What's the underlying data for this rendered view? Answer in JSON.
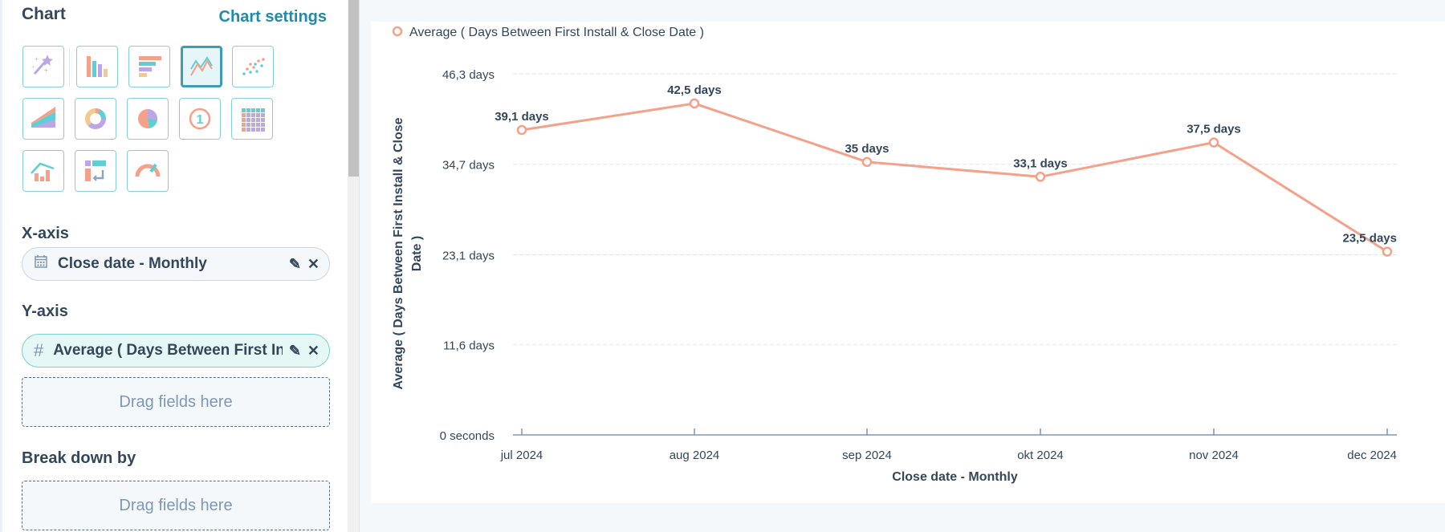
{
  "panel": {
    "title": "Chart",
    "settings_link": "Chart settings",
    "chart_types": [
      "magic-wand",
      "vertical-bar",
      "horizontal-bar",
      "line",
      "scatter",
      "area",
      "donut",
      "pie",
      "summary",
      "pivot-table",
      "combo",
      "sankey",
      "gauge"
    ],
    "selected_type": "line",
    "xaxis_label": "X-axis",
    "xaxis_field": "Close date - Monthly",
    "yaxis_label": "Y-axis",
    "yaxis_field": "Average ( Days Between First Install & Close Date )",
    "drop_placeholder": "Drag fields here",
    "breakdown_label": "Break down by",
    "breakdown_placeholder": "Drag fields here"
  },
  "colors": {
    "series": "#f5a089",
    "text": "#33475b",
    "accent": "#1f8ba8"
  },
  "chart_data": {
    "type": "line",
    "legend": [
      "Average ( Days Between First Install & Close Date )"
    ],
    "legend_position": "top-left",
    "categories": [
      "jul 2024",
      "aug 2024",
      "sep 2024",
      "okt 2024",
      "nov 2024",
      "dec 2024"
    ],
    "series": [
      {
        "name": "Average ( Days Between First Install & Close Date )",
        "values": [
          39.1,
          42.5,
          35,
          33.1,
          37.5,
          23.5
        ],
        "labels": [
          "39,1 days",
          "42,5 days",
          "35 days",
          "33,1 days",
          "37,5 days",
          "23,5 days"
        ]
      }
    ],
    "yticks": [
      0,
      11.6,
      23.1,
      34.7,
      46.3
    ],
    "ytick_labels": [
      "0 seconds",
      "11,6 days",
      "23,1 days",
      "34,7 days",
      "46,3 days"
    ],
    "ylim": [
      0,
      46.3
    ],
    "xlabel": "Close date - Monthly",
    "ylabel_lines": [
      "Average ( Days Between First Install & Close",
      "Date )"
    ],
    "grid": true
  }
}
